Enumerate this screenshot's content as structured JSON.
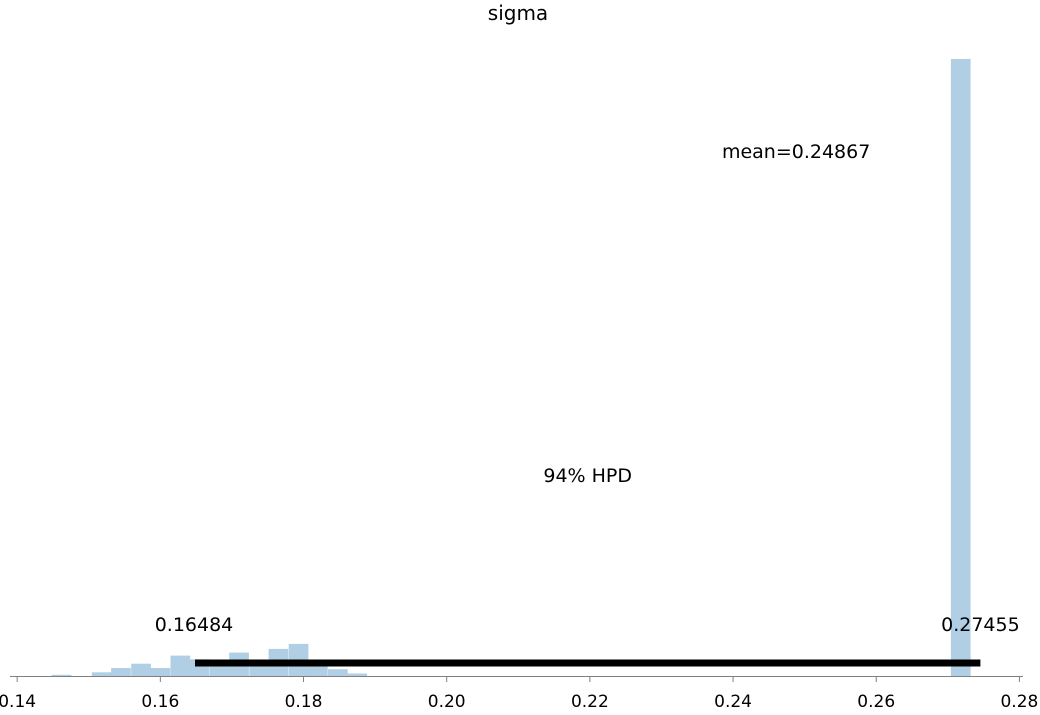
{
  "chart_data": {
    "type": "bar",
    "title": "sigma",
    "xlabel": "",
    "ylabel": "",
    "xlim": [
      0.139,
      0.2805
    ],
    "ylim": [
      0,
      100
    ],
    "x_ticks": [
      "0.14",
      "0.16",
      "0.18",
      "0.20",
      "0.22",
      "0.24",
      "0.26",
      "0.28"
    ],
    "x_tick_values": [
      0.14,
      0.16,
      0.18,
      0.2,
      0.22,
      0.24,
      0.26,
      0.28
    ],
    "bin_width": 0.00275,
    "bins": [
      {
        "x": 0.1462,
        "value": 0.2
      },
      {
        "x": 0.1518,
        "value": 0.6
      },
      {
        "x": 0.1545,
        "value": 1.3
      },
      {
        "x": 0.1573,
        "value": 2.0
      },
      {
        "x": 0.16,
        "value": 1.3
      },
      {
        "x": 0.1628,
        "value": 3.3
      },
      {
        "x": 0.1655,
        "value": 2.7
      },
      {
        "x": 0.1683,
        "value": 2.5
      },
      {
        "x": 0.171,
        "value": 3.8
      },
      {
        "x": 0.1738,
        "value": 2.5
      },
      {
        "x": 0.1765,
        "value": 4.4
      },
      {
        "x": 0.1793,
        "value": 5.2
      },
      {
        "x": 0.182,
        "value": 1.7
      },
      {
        "x": 0.1848,
        "value": 1.1
      },
      {
        "x": 0.1875,
        "value": 0.4
      },
      {
        "x": 0.2718,
        "value": 100
      }
    ],
    "annotations": {
      "mean_text": "mean=0.24867",
      "mean": 0.24867,
      "hpd_label": "94% HPD",
      "hpd_low": 0.16484,
      "hpd_high": 0.27455,
      "hpd_low_text": "0.16484",
      "hpd_high_text": "0.27455"
    },
    "colors": {
      "bars": "#b0cfe5",
      "hpd_line": "#000000",
      "axis": "#808080"
    },
    "grid": false,
    "legend": "none"
  }
}
